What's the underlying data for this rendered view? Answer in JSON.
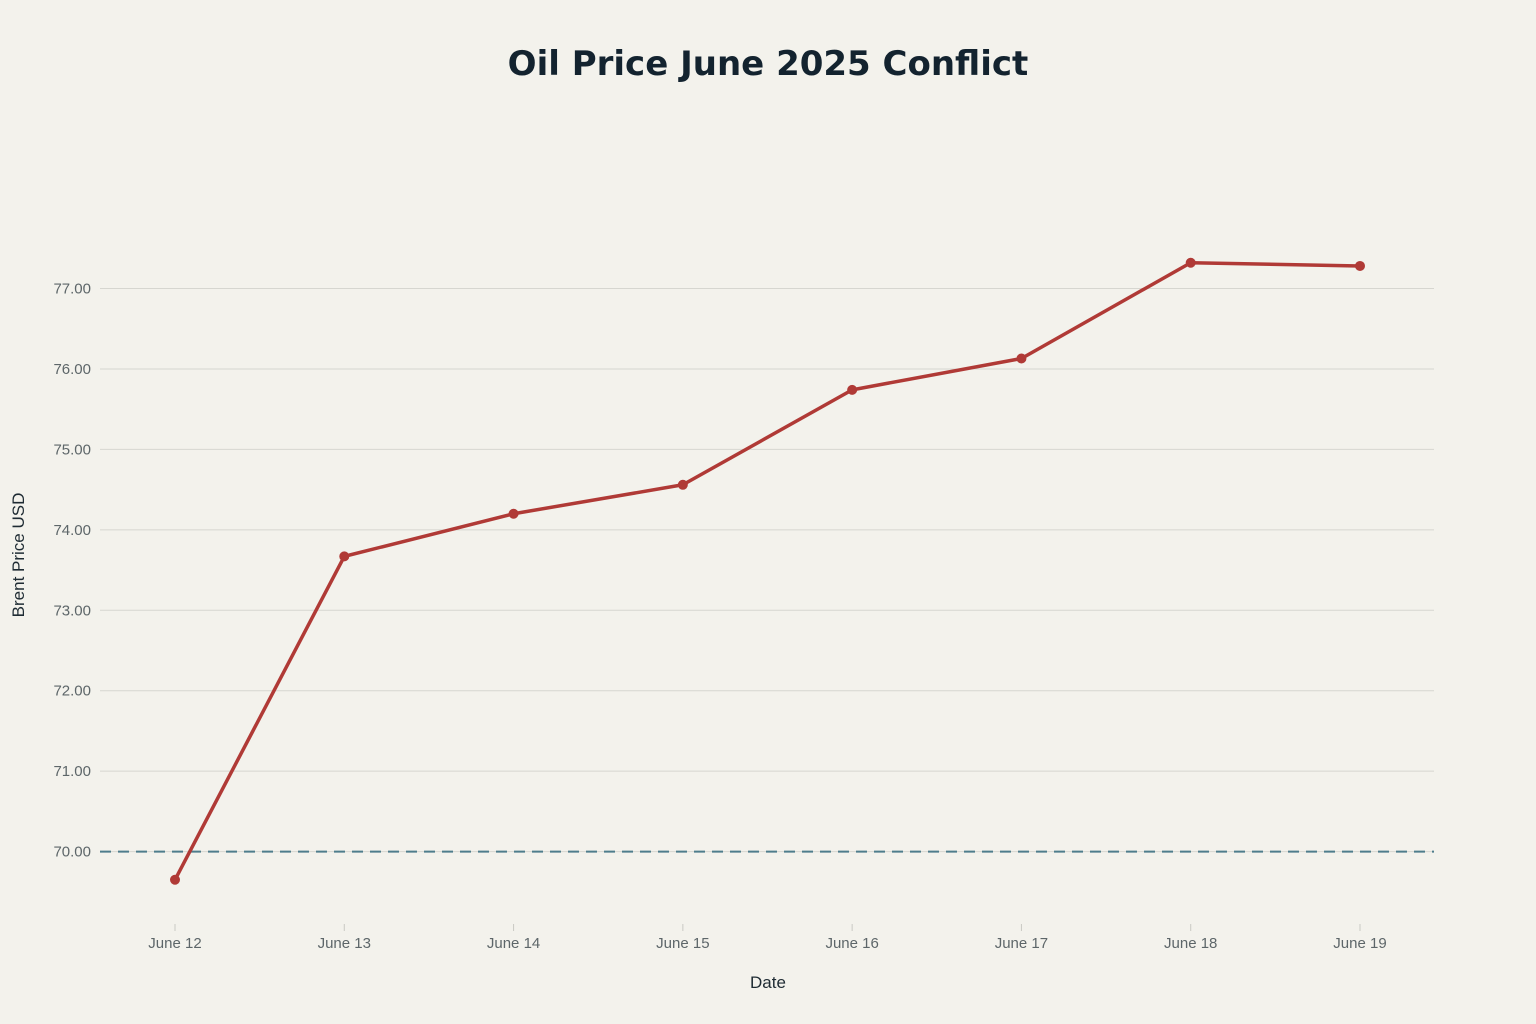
{
  "chart_data": {
    "type": "line",
    "title": "Oil Price June 2025 Conflict",
    "xlabel": "Date",
    "ylabel": "Brent Price USD",
    "categories": [
      "June 12",
      "June 13",
      "June 14",
      "June 15",
      "June 16",
      "June 17",
      "June 18",
      "June 19"
    ],
    "series": [
      {
        "values": [
          69.65,
          73.67,
          74.2,
          74.56,
          75.74,
          76.13,
          77.32,
          77.28
        ],
        "color": "#b03a36"
      }
    ],
    "reference_lines": [
      {
        "y": 70.0,
        "style": "dashed",
        "color": "#4e7d8c"
      }
    ],
    "y_ticks": [
      "70.00",
      "71.00",
      "72.00",
      "73.00",
      "74.00",
      "75.00",
      "76.00",
      "77.00"
    ],
    "y_tick_values": [
      70,
      71,
      72,
      73,
      74,
      75,
      76,
      77
    ],
    "ylim": [
      69.15,
      78.1
    ],
    "grid": true,
    "legend": "none",
    "background": "#f3f2ec"
  }
}
